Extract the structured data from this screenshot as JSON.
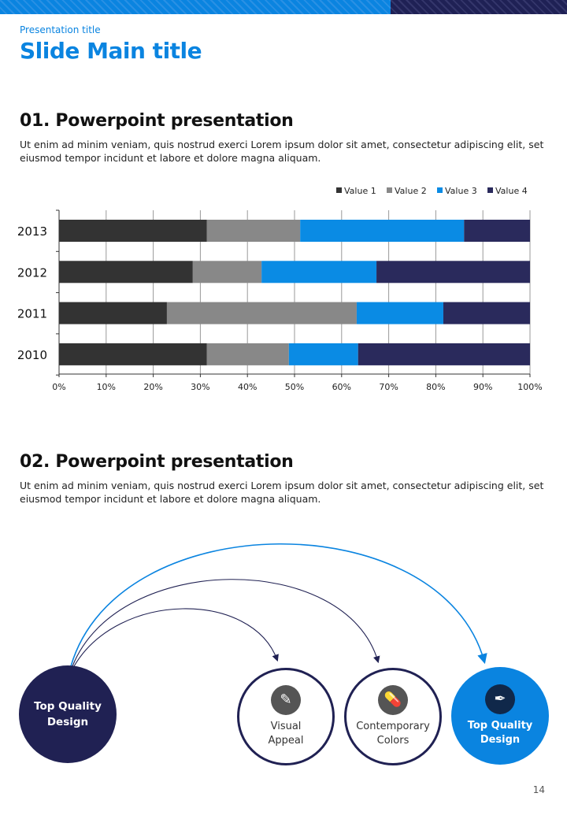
{
  "header": {
    "presentation_title": "Presentation title",
    "main_title": "Slide Main title"
  },
  "section1": {
    "heading": "01. Powerpoint presentation",
    "body": "Ut enim ad minim veniam, quis nostrud exerci  Lorem ipsum dolor sit amet, consectetur adipiscing elit, set eiusmod tempor incidunt et labore et dolore magna aliquam."
  },
  "section2": {
    "heading": "02. Powerpoint presentation",
    "body": "Ut enim ad minim veniam, quis nostrud exerci  Lorem ipsum dolor sit amet, consectetur adipiscing elit, set eiusmod tempor incidunt et labore et dolore magna aliquam."
  },
  "chart_data": {
    "type": "bar",
    "orientation": "horizontal",
    "stacked": "100%",
    "categories": [
      "2013",
      "2012",
      "2011",
      "2010"
    ],
    "series": [
      {
        "name": "Value  1",
        "color": "#333333",
        "values": [
          31.4,
          28.4,
          22.9,
          31.4
        ]
      },
      {
        "name": "Value  2",
        "color": "#888888",
        "values": [
          19.8,
          14.6,
          40.3,
          17.4
        ]
      },
      {
        "name": "Value  3",
        "color": "#0a8be4",
        "values": [
          34.8,
          24.4,
          18.4,
          14.7
        ]
      },
      {
        "name": "Value  4",
        "color": "#2a2a5c",
        "values": [
          14.0,
          32.6,
          18.4,
          36.5
        ]
      }
    ],
    "xlim": [
      0,
      100
    ],
    "xticks": [
      "0%",
      "10%",
      "20%",
      "30%",
      "40%",
      "50%",
      "60%",
      "70%",
      "80%",
      "90%",
      "100%"
    ],
    "grid": true,
    "legend": "top-right"
  },
  "diagram": {
    "source": {
      "label": "Top Quality Design",
      "color": "#202153"
    },
    "targets": [
      {
        "label1": "Visual",
        "label2": "Appeal",
        "icon": "pencil-icon"
      },
      {
        "label1": "Contemporary",
        "label2": "Colors",
        "icon": "pills-icon"
      },
      {
        "label1": "Top Quality",
        "label2": "Design",
        "icon": "syringe-icon",
        "color": "#0a84e0"
      }
    ]
  },
  "page_number": "14"
}
